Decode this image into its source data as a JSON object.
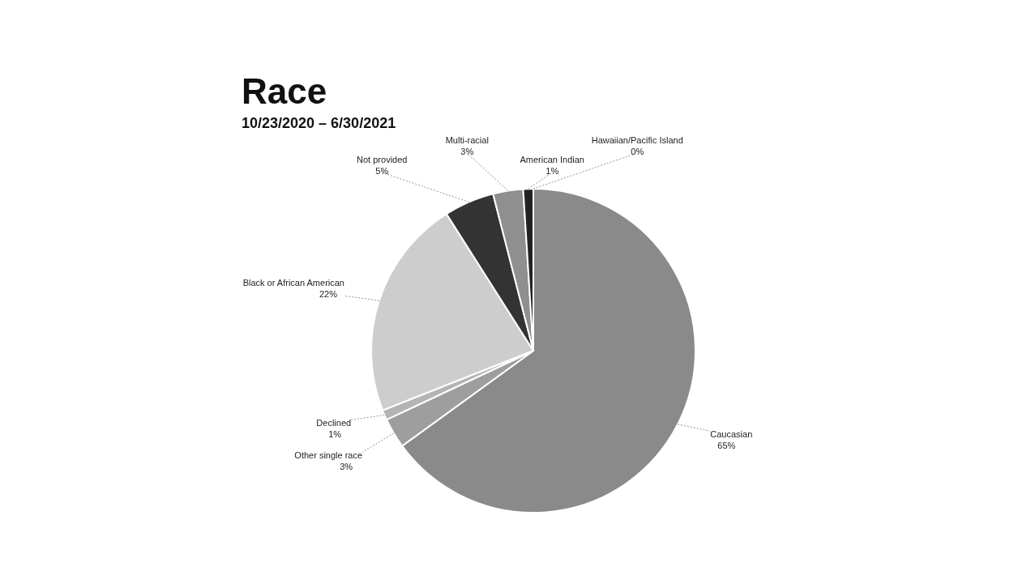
{
  "chart_data": {
    "type": "pie",
    "title": "Race",
    "subtitle": "10/23/2020 – 6/30/2021",
    "categories": [
      "Caucasian",
      "Other single race",
      "Declined",
      "Black or African American",
      "Not provided",
      "Multi-racial",
      "American Indian",
      "Hawaiian/Pacific Island"
    ],
    "values": [
      65,
      3,
      1,
      22,
      5,
      3,
      1,
      0
    ],
    "colors": [
      "#8a8a8a",
      "#9e9e9e",
      "#b4b4b4",
      "#cdcdcd",
      "#333333",
      "#8f8f8f",
      "#222222",
      "#5e5e5e"
    ],
    "value_labels": [
      "65%",
      "3%",
      "1%",
      "22%",
      "5%",
      "3%",
      "1%",
      "0%"
    ],
    "legend": false
  }
}
